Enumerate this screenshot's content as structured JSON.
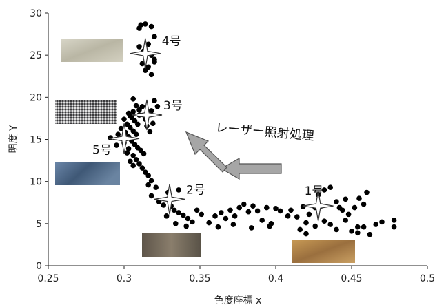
{
  "chart_data": {
    "type": "scatter",
    "xlabel": "色度座標 x",
    "ylabel": "明度 Y",
    "xlim": [
      0.25,
      0.5
    ],
    "ylim": [
      0,
      30
    ],
    "xticks": [
      "0.25",
      "0.3",
      "0.35",
      "0.4",
      "0.45",
      "0.5"
    ],
    "yticks": [
      "0",
      "5",
      "10",
      "15",
      "20",
      "25",
      "30"
    ],
    "grid": false,
    "arrow_label": "レーザー照射処理",
    "points": [
      [
        0.31,
        28.2
      ],
      [
        0.311,
        28.6
      ],
      [
        0.314,
        28.7
      ],
      [
        0.318,
        28.4
      ],
      [
        0.32,
        27.2
      ],
      [
        0.31,
        26.0
      ],
      [
        0.313,
        25.5
      ],
      [
        0.316,
        26.3
      ],
      [
        0.318,
        25.0
      ],
      [
        0.32,
        24.5
      ],
      [
        0.312,
        24.0
      ],
      [
        0.314,
        23.2
      ],
      [
        0.316,
        23.6
      ],
      [
        0.318,
        22.7
      ],
      [
        0.32,
        24.2
      ],
      [
        0.306,
        19.8
      ],
      [
        0.308,
        19.0
      ],
      [
        0.31,
        18.5
      ],
      [
        0.303,
        18.1
      ],
      [
        0.305,
        17.6
      ],
      [
        0.307,
        17.2
      ],
      [
        0.309,
        16.8
      ],
      [
        0.302,
        16.8
      ],
      [
        0.304,
        16.4
      ],
      [
        0.306,
        16.0
      ],
      [
        0.308,
        15.6
      ],
      [
        0.301,
        15.8
      ],
      [
        0.303,
        15.3
      ],
      [
        0.305,
        14.8
      ],
      [
        0.307,
        14.4
      ],
      [
        0.309,
        14.0
      ],
      [
        0.311,
        13.7
      ],
      [
        0.313,
        13.3
      ],
      [
        0.3,
        17.4
      ],
      [
        0.304,
        17.8
      ],
      [
        0.306,
        18.3
      ],
      [
        0.298,
        16.3
      ],
      [
        0.296,
        15.6
      ],
      [
        0.3,
        14.6
      ],
      [
        0.303,
        13.9
      ],
      [
        0.306,
        13.1
      ],
      [
        0.308,
        12.6
      ],
      [
        0.31,
        12.1
      ],
      [
        0.312,
        11.6
      ],
      [
        0.314,
        11.1
      ],
      [
        0.316,
        10.7
      ],
      [
        0.304,
        12.4
      ],
      [
        0.306,
        11.9
      ],
      [
        0.302,
        13.4
      ],
      [
        0.315,
        16.6
      ],
      [
        0.317,
        15.9
      ],
      [
        0.314,
        17.4
      ],
      [
        0.318,
        18.4
      ],
      [
        0.32,
        19.6
      ],
      [
        0.322,
        18.9
      ],
      [
        0.319,
        16.9
      ],
      [
        0.312,
        18.9
      ],
      [
        0.31,
        17.9
      ],
      [
        0.291,
        15.2
      ],
      [
        0.295,
        14.3
      ],
      [
        0.318,
        10.1
      ],
      [
        0.316,
        9.6
      ],
      [
        0.321,
        9.3
      ],
      [
        0.318,
        8.3
      ],
      [
        0.323,
        7.6
      ],
      [
        0.326,
        7.2
      ],
      [
        0.329,
        8.7
      ],
      [
        0.331,
        7.1
      ],
      [
        0.333,
        6.6
      ],
      [
        0.336,
        6.3
      ],
      [
        0.339,
        6.0
      ],
      [
        0.342,
        5.6
      ],
      [
        0.345,
        5.2
      ],
      [
        0.348,
        6.6
      ],
      [
        0.351,
        6.1
      ],
      [
        0.336,
        9.0
      ],
      [
        0.328,
        5.9
      ],
      [
        0.334,
        5.0
      ],
      [
        0.341,
        4.7
      ],
      [
        0.356,
        5.1
      ],
      [
        0.36,
        5.9
      ],
      [
        0.364,
        6.3
      ],
      [
        0.367,
        5.6
      ],
      [
        0.37,
        6.6
      ],
      [
        0.373,
        5.9
      ],
      [
        0.376,
        6.9
      ],
      [
        0.379,
        7.3
      ],
      [
        0.382,
        6.4
      ],
      [
        0.385,
        7.1
      ],
      [
        0.388,
        6.5
      ],
      [
        0.391,
        5.4
      ],
      [
        0.394,
        6.9
      ],
      [
        0.397,
        5.0
      ],
      [
        0.4,
        6.8
      ],
      [
        0.403,
        6.5
      ],
      [
        0.362,
        4.6
      ],
      [
        0.372,
        4.9
      ],
      [
        0.384,
        4.5
      ],
      [
        0.396,
        4.7
      ],
      [
        0.41,
        6.6
      ],
      [
        0.414,
        5.8
      ],
      [
        0.418,
        7.0
      ],
      [
        0.42,
        5.1
      ],
      [
        0.422,
        6.1
      ],
      [
        0.426,
        6.9
      ],
      [
        0.428,
        8.4
      ],
      [
        0.432,
        9.0
      ],
      [
        0.436,
        9.3
      ],
      [
        0.44,
        7.6
      ],
      [
        0.444,
        6.6
      ],
      [
        0.446,
        7.9
      ],
      [
        0.448,
        6.1
      ],
      [
        0.452,
        6.9
      ],
      [
        0.455,
        8.0
      ],
      [
        0.458,
        7.3
      ],
      [
        0.46,
        8.7
      ],
      [
        0.416,
        4.3
      ],
      [
        0.42,
        3.8
      ],
      [
        0.426,
        4.7
      ],
      [
        0.432,
        5.3
      ],
      [
        0.436,
        4.9
      ],
      [
        0.44,
        4.3
      ],
      [
        0.446,
        5.4
      ],
      [
        0.45,
        4.1
      ],
      [
        0.454,
        3.9
      ],
      [
        0.458,
        4.6
      ],
      [
        0.462,
        3.7
      ],
      [
        0.466,
        4.9
      ],
      [
        0.47,
        5.2
      ],
      [
        0.478,
        5.4
      ],
      [
        0.478,
        4.6
      ],
      [
        0.454,
        4.6
      ],
      [
        0.442,
        6.9
      ],
      [
        0.43,
        7.1
      ],
      [
        0.408,
        5.9
      ]
    ],
    "markers": [
      {
        "label": "4号",
        "x": 0.314,
        "y": 25.2
      },
      {
        "label": "3号",
        "x": 0.315,
        "y": 17.9
      },
      {
        "label": "5号",
        "x": 0.3,
        "y": 15.1
      },
      {
        "label": "2号",
        "x": 0.33,
        "y": 7.9
      },
      {
        "label": "1号",
        "x": 0.428,
        "y": 7.1
      }
    ],
    "swatch_colors": {
      "swatch_4": "#c9c6b6",
      "swatch_3": "#8d8d8f",
      "swatch_5": "#4f6a8c",
      "swatch_2": "#6f6455",
      "swatch_1": "#b8894b"
    }
  }
}
